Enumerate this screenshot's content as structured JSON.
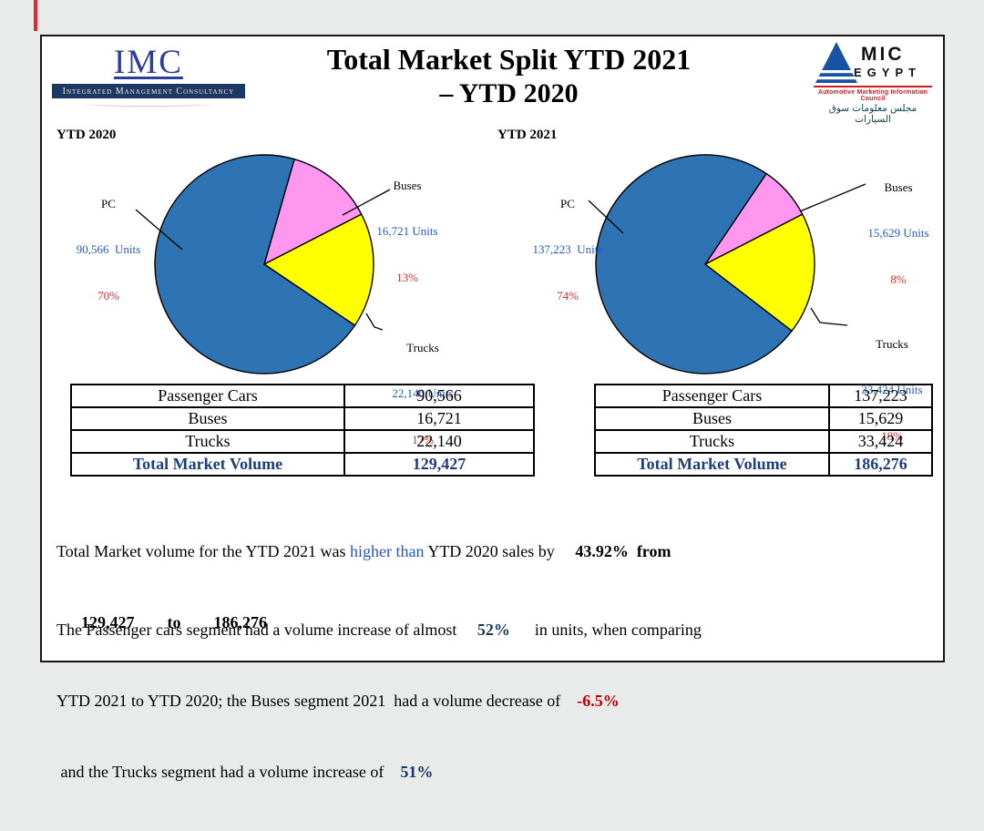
{
  "header": {
    "title_line1": "Total Market Split YTD 2021",
    "title_line2": "– YTD 2020",
    "imc": {
      "acronym": "IMC",
      "name": "Integrated Management Consultancy"
    },
    "amic": {
      "mic": "MIC",
      "egypt": "EGYPT",
      "council": "Automotive Marketing Information Council",
      "arabic": "مجلس معلومات سوق السيارات"
    }
  },
  "chart_data": [
    {
      "type": "pie",
      "title": "YTD 2020",
      "labels": [
        "PC",
        "Buses",
        "Trucks"
      ],
      "units": [
        90566,
        16721,
        22140
      ],
      "units_text": [
        "90,566  Units",
        "16,721 Units",
        "22,140 Units"
      ],
      "percents": [
        70,
        13,
        17
      ],
      "percent_text": [
        "70%",
        "13%",
        "17%"
      ],
      "colors": [
        "#2e74b5",
        "#ff97f0",
        "#ffff00"
      ],
      "total": 129427,
      "start_angle": 16,
      "draw_order": [
        1,
        2,
        0
      ]
    },
    {
      "type": "pie",
      "title": "YTD 2021",
      "labels": [
        "PC",
        "Buses",
        "Trucks"
      ],
      "units": [
        137223,
        15629,
        33424
      ],
      "units_text": [
        "137,223  Units",
        "15,629 Units",
        "33,424 Units"
      ],
      "percents": [
        74,
        8,
        18
      ],
      "percent_text": [
        "74%",
        "8%",
        "18%"
      ],
      "colors": [
        "#2e74b5",
        "#ff97f0",
        "#ffff00"
      ],
      "total": 186276,
      "start_angle": 34,
      "draw_order": [
        1,
        2,
        0
      ]
    }
  ],
  "tables": [
    {
      "rows": [
        {
          "label": "Passenger Cars",
          "value": "90,566"
        },
        {
          "label": "Buses",
          "value": "16,721"
        },
        {
          "label": "Trucks",
          "value": "22,140"
        }
      ],
      "total_label": "Total Market Volume",
      "total_value": "129,427"
    },
    {
      "rows": [
        {
          "label": "Passenger Cars",
          "value": "137,223"
        },
        {
          "label": "Buses",
          "value": "15,629"
        },
        {
          "label": "Trucks",
          "value": "33,424"
        }
      ],
      "total_label": "Total Market Volume",
      "total_value": "186,276"
    }
  ],
  "notes": {
    "p1": [
      [
        {
          "t": "Total Market volume for the YTD 2021 was ",
          "c": "k"
        },
        {
          "t": "higher than",
          "c": "b"
        },
        {
          "t": " YTD 2020 sales by ",
          "c": "k"
        },
        {
          "t": "    43.92%",
          "c": "kb"
        },
        {
          "t": "  from",
          "c": "kb"
        }
      ],
      [
        {
          "t": "      129,427        to        186,276",
          "c": "kb"
        }
      ]
    ],
    "p2": [
      [
        {
          "t": "The Passenger cars segment had a volume increase of almost     ",
          "c": "k"
        },
        {
          "t": "52%",
          "c": "nb"
        },
        {
          "t": "      in units, when comparing",
          "c": "k"
        }
      ],
      [
        {
          "t": "YTD 2021 to YTD 2020; the Buses segment 2021  had a volume decrease of    ",
          "c": "k"
        },
        {
          "t": "-6.5%",
          "c": "rb"
        }
      ],
      [
        {
          "t": " and the Trucks segment had a volume increase of    ",
          "c": "k"
        },
        {
          "t": "51%",
          "c": "nb"
        }
      ]
    ]
  }
}
